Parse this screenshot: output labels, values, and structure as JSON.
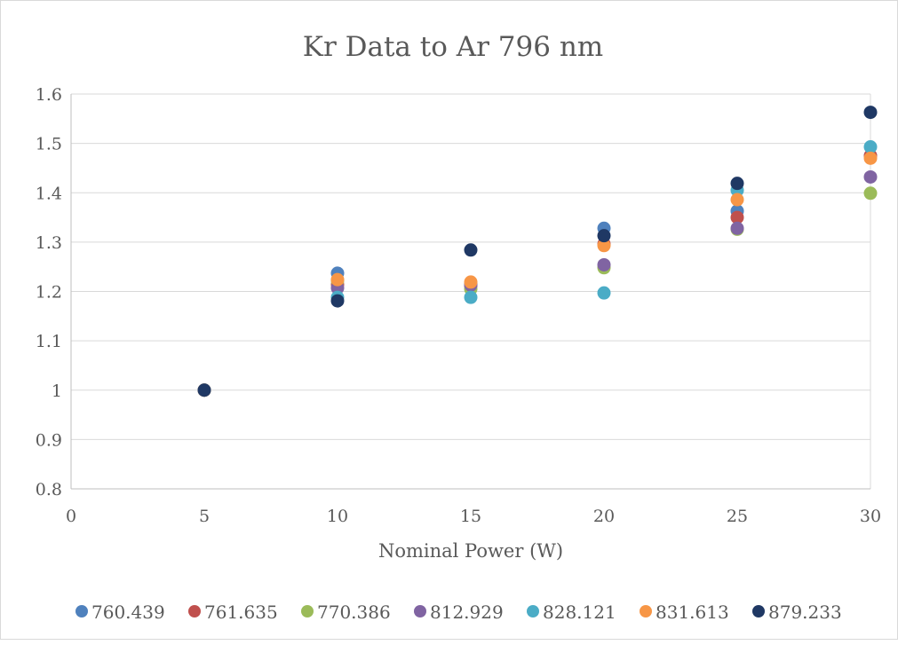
{
  "chart_data": {
    "type": "scatter",
    "title": "Kr Data to Ar 796 nm",
    "xlabel": "Nominal Power (W)",
    "ylabel": "",
    "xlim": [
      0,
      30
    ],
    "ylim": [
      0.8,
      1.6
    ],
    "x_ticks": [
      "0",
      "5",
      "10",
      "15",
      "20",
      "25",
      "30"
    ],
    "y_ticks": [
      "0.8",
      "0.9",
      "1",
      "1.1",
      "1.2",
      "1.3",
      "1.4",
      "1.5",
      "1.6"
    ],
    "grid": "horizontal",
    "legend_position": "bottom",
    "x": [
      5,
      10,
      15,
      20,
      25,
      30
    ],
    "series": [
      {
        "name": "760.439",
        "color": "#4f81bd",
        "values": [
          1.0,
          1.237,
          1.215,
          1.328,
          1.363,
          1.475
        ]
      },
      {
        "name": "761.635",
        "color": "#c0504d",
        "values": [
          1.0,
          1.214,
          1.212,
          1.296,
          1.35,
          1.475
        ]
      },
      {
        "name": "770.386",
        "color": "#9bbb59",
        "values": [
          1.0,
          1.222,
          1.205,
          1.248,
          1.326,
          1.399
        ]
      },
      {
        "name": "812.929",
        "color": "#8064a2",
        "values": [
          1.0,
          1.207,
          1.213,
          1.254,
          1.328,
          1.432
        ]
      },
      {
        "name": "828.121",
        "color": "#4bacc6",
        "values": [
          1.0,
          1.188,
          1.188,
          1.197,
          1.405,
          1.493
        ]
      },
      {
        "name": "831.613",
        "color": "#f79646",
        "values": [
          1.0,
          1.224,
          1.219,
          1.293,
          1.386,
          1.47
        ]
      },
      {
        "name": "879.233",
        "color": "#1f3864",
        "values": [
          1.0,
          1.181,
          1.284,
          1.313,
          1.419,
          1.563
        ]
      }
    ]
  }
}
